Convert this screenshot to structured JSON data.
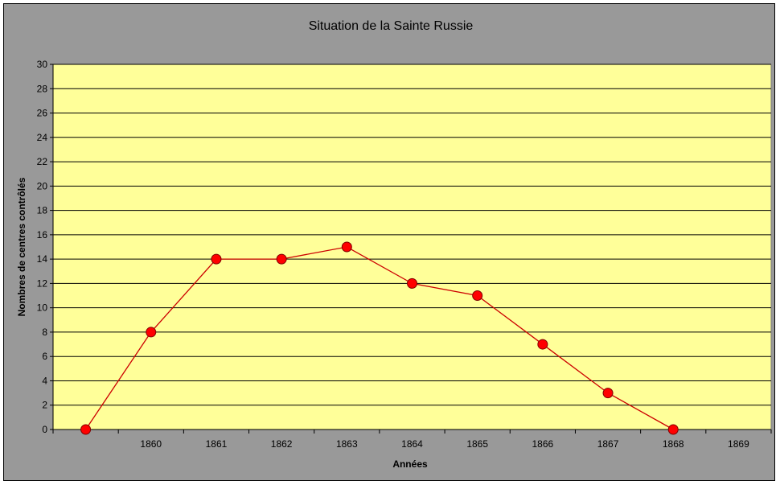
{
  "chart_data": {
    "type": "line",
    "title": "Situation de la Sainte Russie",
    "xlabel": "Années",
    "ylabel": "Nombres de centres contrôlés",
    "x_tick_labels": [
      "1860",
      "1861",
      "1862",
      "1863",
      "1864",
      "1865",
      "1866",
      "1867",
      "1868",
      "1869"
    ],
    "ylim": [
      0,
      30
    ],
    "y_tick_step": 2,
    "grid": true,
    "legend": "none",
    "series": [
      {
        "points": [
          {
            "x": 1859,
            "y": 0
          },
          {
            "x": 1860,
            "y": 8
          },
          {
            "x": 1861,
            "y": 14
          },
          {
            "x": 1862,
            "y": 14
          },
          {
            "x": 1863,
            "y": 15
          },
          {
            "x": 1864,
            "y": 12
          },
          {
            "x": 1865,
            "y": 11
          },
          {
            "x": 1866,
            "y": 7
          },
          {
            "x": 1867,
            "y": 3
          },
          {
            "x": 1868,
            "y": 0
          }
        ]
      }
    ],
    "colors": {
      "frame_background": "#999999",
      "plot_background": "#FFFF99",
      "gridline": "#000000",
      "series_line": "#CC0000",
      "marker_fill": "#FF0000",
      "marker_stroke": "#800000"
    }
  }
}
